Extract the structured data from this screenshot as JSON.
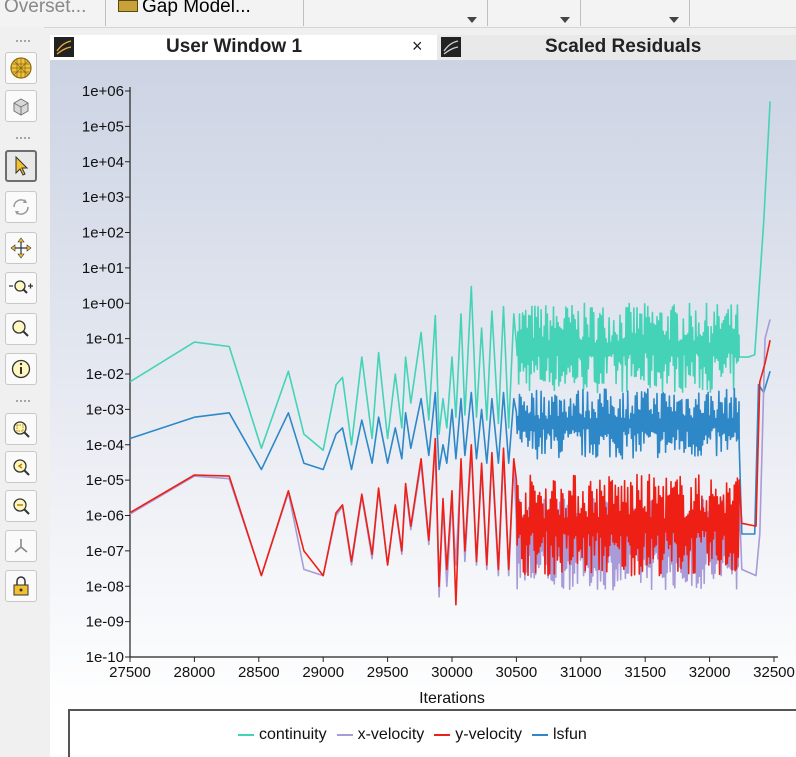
{
  "topbar": {
    "tab1_label": "Overset...",
    "tab2_label": "Gap Model..."
  },
  "tabs": [
    {
      "title": "User Window 1",
      "close": "×"
    },
    {
      "title": "Scaled Residuals"
    }
  ],
  "toolbar_icons": [
    "mesh-sphere-icon",
    "cube-view-icon",
    "select-pointer-icon",
    "rotate-icon",
    "pan-icon",
    "zoom-in-out-icon",
    "zoom-icon",
    "probe-info-icon",
    "zoom-to-area-icon",
    "zoom-previous-icon",
    "zoom-fit-icon",
    "axes-icon",
    "lock-view-icon"
  ],
  "colors": {
    "continuity": "#45d3b8",
    "x_velocity": "#a99ad8",
    "y_velocity": "#ee2016",
    "lsfun": "#2e88c8",
    "plot_top": "#ccd3e3",
    "plot_bottom": "#ffffff"
  },
  "legend": [
    {
      "key": "continuity",
      "label": "continuity",
      "color": "#45d3b8"
    },
    {
      "key": "x_velocity",
      "label": "x-velocity",
      "color": "#a99ad8"
    },
    {
      "key": "y_velocity",
      "label": "y-velocity",
      "color": "#ee2016"
    },
    {
      "key": "lsfun",
      "label": "lsfun",
      "color": "#2e88c8"
    }
  ],
  "chart_data": {
    "type": "line",
    "xlabel": "Iterations",
    "ylabel": "",
    "xlim": [
      27500,
      32500
    ],
    "ylim_log10": [
      -10,
      6
    ],
    "y_scale": "log",
    "x_ticks": [
      "27500",
      "28000",
      "28500",
      "29000",
      "29500",
      "30000",
      "30500",
      "31000",
      "31500",
      "32000",
      "32500"
    ],
    "y_ticks": [
      "1e-10",
      "1e-09",
      "1e-08",
      "1e-07",
      "1e-06",
      "1e-05",
      "1e-04",
      "1e-03",
      "1e-02",
      "1e-01",
      "1e+00",
      "1e+01",
      "1e+02",
      "1e+03",
      "1e+04",
      "1e+05",
      "1e+06"
    ],
    "legend_position": "bottom",
    "series": [
      {
        "name": "continuity",
        "color": "#45d3b8",
        "x": [
          27500,
          28000,
          28270,
          28520,
          28730,
          28850,
          29000,
          29100,
          29150,
          29220,
          29300,
          29380,
          29430,
          29500,
          29560,
          29610,
          29640,
          29680,
          29760,
          29820,
          29870,
          29900,
          29930,
          29960,
          30000,
          30030,
          30070,
          30100,
          30150,
          30190,
          30230,
          30270,
          30310,
          30360,
          30400,
          30440,
          30480
        ],
        "y": [
          0.006,
          0.08,
          0.06,
          8e-05,
          0.012,
          0.0002,
          7e-05,
          0.005,
          0.008,
          0.0001,
          0.03,
          0.00015,
          0.04,
          0.00015,
          0.01,
          0.0003,
          0.03,
          0.0015,
          0.15,
          0.0005,
          0.45,
          0.0002,
          0.002,
          0.0003,
          0.03,
          0.0006,
          0.5,
          0.0007,
          3.0,
          0.0006,
          0.2,
          0.0005,
          0.6,
          0.0004,
          0.8,
          0.0003,
          0.5
        ]
      },
      {
        "name": "x-velocity",
        "color": "#a99ad8",
        "x": [
          27500,
          28000,
          28270,
          28520,
          28730,
          28850,
          29000,
          29100,
          29150,
          29220,
          29300,
          29380,
          29430,
          29500,
          29560,
          29610,
          29640,
          29680,
          29760,
          29820,
          29870,
          29900,
          29930,
          29960,
          30000,
          30030,
          30070,
          30100,
          30150,
          30190,
          30230,
          30270,
          30310,
          30360,
          30400,
          30440,
          30480
        ],
        "y": [
          1.1e-06,
          1.3e-05,
          1.1e-05,
          2e-08,
          4.5e-06,
          3e-08,
          2e-08,
          1e-06,
          1.8e-06,
          4e-08,
          3.5e-06,
          6e-08,
          5e-06,
          4e-08,
          1.8e-06,
          8e-08,
          6e-06,
          4e-07,
          3e-05,
          1.5e-07,
          0.0001,
          5e-09,
          2e-06,
          1e-08,
          3e-06,
          4e-08,
          3e-05,
          5e-08,
          7e-05,
          4e-08,
          2e-05,
          3e-08,
          4e-05,
          2e-08,
          5e-05,
          2e-08,
          3e-05
        ]
      },
      {
        "name": "y-velocity",
        "color": "#ee2016",
        "x": [
          27500,
          28000,
          28270,
          28520,
          28730,
          28850,
          29000,
          29100,
          29150,
          29220,
          29300,
          29380,
          29430,
          29500,
          29560,
          29610,
          29640,
          29680,
          29760,
          29820,
          29870,
          29900,
          29930,
          29960,
          30000,
          30030,
          30070,
          30100,
          30150,
          30190,
          30230,
          30270,
          30310,
          30360,
          30400,
          30440,
          30480
        ],
        "y": [
          1.2e-06,
          1.4e-05,
          1.3e-05,
          2e-08,
          5e-06,
          1e-07,
          2e-08,
          1.2e-06,
          2e-06,
          5e-08,
          4e-06,
          8e-08,
          6e-06,
          4e-08,
          2e-06,
          1e-07,
          8e-06,
          5e-07,
          4e-05,
          2e-07,
          0.00015,
          1e-08,
          3e-06,
          3e-08,
          5e-06,
          3e-09,
          4e-05,
          1e-07,
          0.0001,
          5e-08,
          3e-05,
          4e-08,
          6e-05,
          3e-08,
          8e-05,
          3e-08,
          4e-05
        ]
      },
      {
        "name": "lsfun",
        "color": "#2e88c8",
        "x": [
          27500,
          28000,
          28270,
          28520,
          28730,
          28850,
          29000,
          29100,
          29150,
          29220,
          29300,
          29380,
          29430,
          29500,
          29560,
          29610,
          29640,
          29680,
          29760,
          29820,
          29870,
          29900,
          29930,
          29960,
          30000,
          30030,
          30070,
          30100,
          30150,
          30190,
          30230,
          30270,
          30310,
          30360,
          30400,
          30440,
          30480
        ],
        "y": [
          0.00015,
          0.0006,
          0.0008,
          2e-05,
          0.0008,
          3e-05,
          2e-05,
          0.0002,
          0.0003,
          2e-05,
          0.0005,
          3e-05,
          0.0006,
          3e-05,
          0.0003,
          4e-05,
          0.0008,
          8e-05,
          0.002,
          5e-05,
          0.003,
          2e-05,
          0.0001,
          3e-05,
          0.001,
          4e-05,
          0.002,
          5e-05,
          0.003,
          4e-05,
          0.001,
          3e-05,
          0.002,
          3e-05,
          0.003,
          3e-05,
          0.002
        ]
      }
    ],
    "dense_region": {
      "x_range": [
        30500,
        32230
      ],
      "continuity": [
        0.003,
        1.0
      ],
      "lsfun": [
        4e-05,
        0.004
      ],
      "y_velocity": [
        2e-08,
        1.5e-05
      ],
      "x_velocity": [
        8e-09,
        3e-06
      ]
    },
    "tail": {
      "continuity": {
        "x": [
          32230,
          32300,
          32350,
          32420,
          32470
        ],
        "y": [
          0.03,
          0.03,
          0.035,
          200,
          500000
        ]
      },
      "lsfun": {
        "x": [
          32230,
          32250,
          32350,
          32380,
          32420,
          32470
        ],
        "y": [
          0.0001,
          3e-07,
          3e-07,
          0.005,
          0.003,
          0.012
        ]
      },
      "y_velocity": {
        "x": [
          32230,
          32250,
          32360,
          32390,
          32430,
          32470
        ],
        "y": [
          1e-05,
          6e-07,
          5e-07,
          0.006,
          0.02,
          0.09
        ]
      },
      "x_velocity": {
        "x": [
          32230,
          32250,
          32360,
          32390,
          32430,
          32470
        ],
        "y": [
          3e-06,
          3e-08,
          2e-08,
          3e-07,
          0.1,
          0.35
        ]
      }
    }
  }
}
